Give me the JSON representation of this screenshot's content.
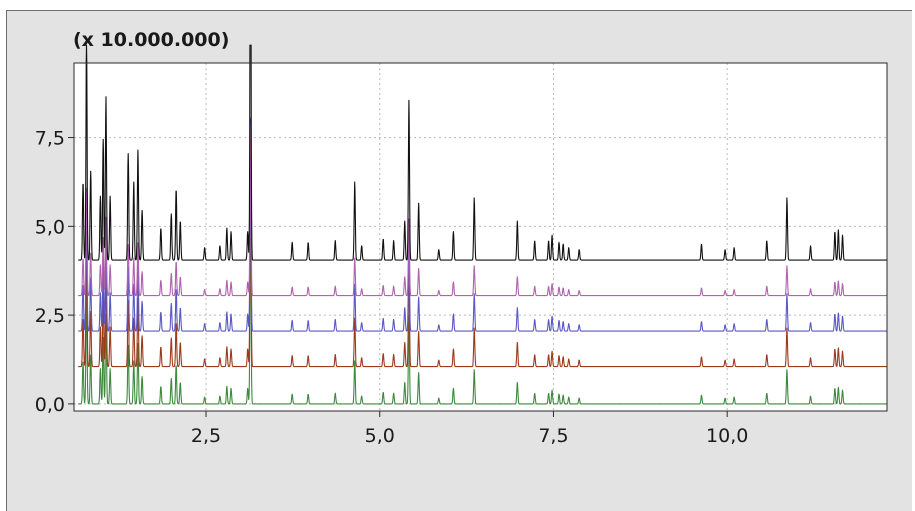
{
  "chart_data": {
    "type": "line",
    "title": "",
    "scale_label": "(x 10.000.000)",
    "xlabel": "",
    "ylabel": "",
    "xlim": [
      0.6,
      12.3
    ],
    "ylim": [
      -0.2,
      9.6
    ],
    "x_ticks": [
      2.5,
      5.0,
      7.5,
      10.0
    ],
    "x_tick_labels": [
      "2,5",
      "5,0",
      "7,5",
      "10,0"
    ],
    "y_ticks": [
      0.0,
      2.5,
      5.0,
      7.5
    ],
    "y_tick_labels": [
      "0,0",
      "2,5",
      "5,0",
      "7,5"
    ],
    "grid": true,
    "legend": "none",
    "series": [
      {
        "color": "#3d8a3d",
        "baseline": 0.0,
        "scale": 0.55,
        "peaks": [
          [
            0.73,
            2.2
          ],
          [
            0.78,
            6.3
          ],
          [
            0.84,
            2.5
          ],
          [
            0.98,
            1.8
          ],
          [
            1.02,
            3.4
          ],
          [
            1.06,
            4.6
          ],
          [
            1.12,
            1.8
          ],
          [
            1.38,
            3.0
          ],
          [
            1.46,
            2.2
          ],
          [
            1.52,
            3.1
          ],
          [
            1.58,
            1.4
          ],
          [
            1.85,
            0.9
          ],
          [
            2.0,
            1.3
          ],
          [
            2.07,
            2.0
          ],
          [
            2.13,
            1.1
          ],
          [
            2.48,
            0.35
          ],
          [
            2.7,
            0.4
          ],
          [
            2.8,
            0.9
          ],
          [
            2.86,
            0.8
          ],
          [
            3.1,
            0.8
          ],
          [
            3.14,
            10.0
          ],
          [
            3.74,
            0.5
          ],
          [
            3.97,
            0.5
          ],
          [
            4.36,
            0.55
          ],
          [
            4.64,
            2.2
          ],
          [
            4.74,
            0.4
          ],
          [
            5.05,
            0.6
          ],
          [
            5.2,
            0.55
          ],
          [
            5.36,
            1.1
          ],
          [
            5.42,
            4.5
          ],
          [
            5.56,
            1.6
          ],
          [
            5.85,
            0.3
          ],
          [
            6.06,
            0.8
          ],
          [
            6.36,
            1.75
          ],
          [
            6.98,
            1.1
          ],
          [
            7.23,
            0.55
          ],
          [
            7.43,
            0.55
          ],
          [
            7.48,
            0.7
          ],
          [
            7.58,
            0.5
          ],
          [
            7.64,
            0.45
          ],
          [
            7.72,
            0.35
          ],
          [
            7.87,
            0.3
          ],
          [
            9.63,
            0.45
          ],
          [
            9.97,
            0.3
          ],
          [
            10.1,
            0.35
          ],
          [
            10.57,
            0.55
          ],
          [
            10.86,
            1.75
          ],
          [
            11.2,
            0.4
          ],
          [
            11.55,
            0.8
          ],
          [
            11.6,
            0.85
          ],
          [
            11.66,
            0.7
          ]
        ]
      },
      {
        "color": "#9c3a1c",
        "baseline": 1.05,
        "scale": 0.62,
        "peaks": [
          [
            0.73,
            2.2
          ],
          [
            0.78,
            6.3
          ],
          [
            0.84,
            2.5
          ],
          [
            0.98,
            1.8
          ],
          [
            1.02,
            3.4
          ],
          [
            1.06,
            4.6
          ],
          [
            1.12,
            1.8
          ],
          [
            1.38,
            3.0
          ],
          [
            1.46,
            2.2
          ],
          [
            1.52,
            3.1
          ],
          [
            1.58,
            1.4
          ],
          [
            1.85,
            0.9
          ],
          [
            2.0,
            1.3
          ],
          [
            2.07,
            2.0
          ],
          [
            2.13,
            1.1
          ],
          [
            2.48,
            0.35
          ],
          [
            2.7,
            0.4
          ],
          [
            2.8,
            0.9
          ],
          [
            2.86,
            0.8
          ],
          [
            3.1,
            0.8
          ],
          [
            3.14,
            10.0
          ],
          [
            3.74,
            0.5
          ],
          [
            3.97,
            0.5
          ],
          [
            4.36,
            0.55
          ],
          [
            4.64,
            2.2
          ],
          [
            4.74,
            0.4
          ],
          [
            5.05,
            0.6
          ],
          [
            5.2,
            0.55
          ],
          [
            5.36,
            1.1
          ],
          [
            5.42,
            4.5
          ],
          [
            5.56,
            1.6
          ],
          [
            5.85,
            0.3
          ],
          [
            6.06,
            0.8
          ],
          [
            6.36,
            1.75
          ],
          [
            6.98,
            1.1
          ],
          [
            7.23,
            0.55
          ],
          [
            7.43,
            0.55
          ],
          [
            7.48,
            0.7
          ],
          [
            7.58,
            0.5
          ],
          [
            7.64,
            0.45
          ],
          [
            7.72,
            0.35
          ],
          [
            7.87,
            0.3
          ],
          [
            9.63,
            0.45
          ],
          [
            9.97,
            0.3
          ],
          [
            10.1,
            0.35
          ],
          [
            10.57,
            0.55
          ],
          [
            10.86,
            1.75
          ],
          [
            11.2,
            0.4
          ],
          [
            11.55,
            0.8
          ],
          [
            11.6,
            0.85
          ],
          [
            11.66,
            0.7
          ]
        ]
      },
      {
        "color": "#5a58c4",
        "baseline": 2.05,
        "scale": 0.6,
        "peaks": [
          [
            0.73,
            2.2
          ],
          [
            0.78,
            6.3
          ],
          [
            0.84,
            2.5
          ],
          [
            0.98,
            1.8
          ],
          [
            1.02,
            3.4
          ],
          [
            1.06,
            4.6
          ],
          [
            1.12,
            1.8
          ],
          [
            1.38,
            3.0
          ],
          [
            1.46,
            2.2
          ],
          [
            1.52,
            3.1
          ],
          [
            1.58,
            1.4
          ],
          [
            1.85,
            0.9
          ],
          [
            2.0,
            1.3
          ],
          [
            2.07,
            2.0
          ],
          [
            2.13,
            1.1
          ],
          [
            2.48,
            0.35
          ],
          [
            2.7,
            0.4
          ],
          [
            2.8,
            0.9
          ],
          [
            2.86,
            0.8
          ],
          [
            3.1,
            0.8
          ],
          [
            3.14,
            10.0
          ],
          [
            3.74,
            0.5
          ],
          [
            3.97,
            0.5
          ],
          [
            4.36,
            0.55
          ],
          [
            4.64,
            2.2
          ],
          [
            4.74,
            0.4
          ],
          [
            5.05,
            0.6
          ],
          [
            5.2,
            0.55
          ],
          [
            5.36,
            1.1
          ],
          [
            5.42,
            4.5
          ],
          [
            5.56,
            1.6
          ],
          [
            5.85,
            0.3
          ],
          [
            6.06,
            0.8
          ],
          [
            6.36,
            1.75
          ],
          [
            6.98,
            1.1
          ],
          [
            7.23,
            0.55
          ],
          [
            7.43,
            0.55
          ],
          [
            7.48,
            0.7
          ],
          [
            7.58,
            0.5
          ],
          [
            7.64,
            0.45
          ],
          [
            7.72,
            0.35
          ],
          [
            7.87,
            0.3
          ],
          [
            9.63,
            0.45
          ],
          [
            9.97,
            0.3
          ],
          [
            10.1,
            0.35
          ],
          [
            10.57,
            0.55
          ],
          [
            10.86,
            1.75
          ],
          [
            11.2,
            0.4
          ],
          [
            11.55,
            0.8
          ],
          [
            11.6,
            0.85
          ],
          [
            11.66,
            0.7
          ]
        ]
      },
      {
        "color": "#b062ae",
        "baseline": 3.05,
        "scale": 0.48,
        "peaks": [
          [
            0.73,
            2.2
          ],
          [
            0.78,
            6.3
          ],
          [
            0.84,
            2.5
          ],
          [
            0.98,
            1.8
          ],
          [
            1.02,
            3.4
          ],
          [
            1.06,
            4.6
          ],
          [
            1.12,
            1.8
          ],
          [
            1.38,
            3.0
          ],
          [
            1.46,
            2.2
          ],
          [
            1.52,
            3.1
          ],
          [
            1.58,
            1.4
          ],
          [
            1.85,
            0.9
          ],
          [
            2.0,
            1.3
          ],
          [
            2.07,
            2.0
          ],
          [
            2.13,
            1.1
          ],
          [
            2.48,
            0.35
          ],
          [
            2.7,
            0.4
          ],
          [
            2.8,
            0.9
          ],
          [
            2.86,
            0.8
          ],
          [
            3.1,
            0.8
          ],
          [
            3.14,
            10.0
          ],
          [
            3.74,
            0.5
          ],
          [
            3.97,
            0.5
          ],
          [
            4.36,
            0.55
          ],
          [
            4.64,
            2.2
          ],
          [
            4.74,
            0.4
          ],
          [
            5.05,
            0.6
          ],
          [
            5.2,
            0.55
          ],
          [
            5.36,
            1.1
          ],
          [
            5.42,
            4.5
          ],
          [
            5.56,
            1.6
          ],
          [
            5.85,
            0.3
          ],
          [
            6.06,
            0.8
          ],
          [
            6.36,
            1.75
          ],
          [
            6.98,
            1.1
          ],
          [
            7.23,
            0.55
          ],
          [
            7.43,
            0.55
          ],
          [
            7.48,
            0.7
          ],
          [
            7.58,
            0.5
          ],
          [
            7.64,
            0.45
          ],
          [
            7.72,
            0.35
          ],
          [
            7.87,
            0.3
          ],
          [
            9.63,
            0.45
          ],
          [
            9.97,
            0.3
          ],
          [
            10.1,
            0.35
          ],
          [
            10.57,
            0.55
          ],
          [
            10.86,
            1.75
          ],
          [
            11.2,
            0.4
          ],
          [
            11.55,
            0.8
          ],
          [
            11.6,
            0.85
          ],
          [
            11.66,
            0.7
          ]
        ]
      },
      {
        "color": "#111111",
        "baseline": 4.05,
        "scale": 1.0,
        "peaks": [
          [
            0.73,
            2.2
          ],
          [
            0.78,
            6.3
          ],
          [
            0.84,
            2.5
          ],
          [
            0.98,
            1.8
          ],
          [
            1.02,
            3.4
          ],
          [
            1.06,
            4.6
          ],
          [
            1.12,
            1.8
          ],
          [
            1.38,
            3.0
          ],
          [
            1.46,
            2.2
          ],
          [
            1.52,
            3.1
          ],
          [
            1.58,
            1.4
          ],
          [
            1.85,
            0.9
          ],
          [
            2.0,
            1.3
          ],
          [
            2.07,
            2.0
          ],
          [
            2.13,
            1.1
          ],
          [
            2.48,
            0.35
          ],
          [
            2.7,
            0.4
          ],
          [
            2.8,
            0.9
          ],
          [
            2.86,
            0.8
          ],
          [
            3.1,
            0.8
          ],
          [
            3.14,
            10.0
          ],
          [
            3.74,
            0.5
          ],
          [
            3.97,
            0.5
          ],
          [
            4.36,
            0.55
          ],
          [
            4.64,
            2.2
          ],
          [
            4.74,
            0.4
          ],
          [
            5.05,
            0.6
          ],
          [
            5.2,
            0.55
          ],
          [
            5.36,
            1.1
          ],
          [
            5.42,
            4.5
          ],
          [
            5.56,
            1.6
          ],
          [
            5.85,
            0.3
          ],
          [
            6.06,
            0.8
          ],
          [
            6.36,
            1.75
          ],
          [
            6.98,
            1.1
          ],
          [
            7.23,
            0.55
          ],
          [
            7.43,
            0.55
          ],
          [
            7.48,
            0.7
          ],
          [
            7.58,
            0.5
          ],
          [
            7.64,
            0.45
          ],
          [
            7.72,
            0.35
          ],
          [
            7.87,
            0.3
          ],
          [
            9.63,
            0.45
          ],
          [
            9.97,
            0.3
          ],
          [
            10.1,
            0.35
          ],
          [
            10.57,
            0.55
          ],
          [
            10.86,
            1.75
          ],
          [
            11.2,
            0.4
          ],
          [
            11.55,
            0.8
          ],
          [
            11.6,
            0.85
          ],
          [
            11.66,
            0.7
          ]
        ]
      }
    ]
  }
}
